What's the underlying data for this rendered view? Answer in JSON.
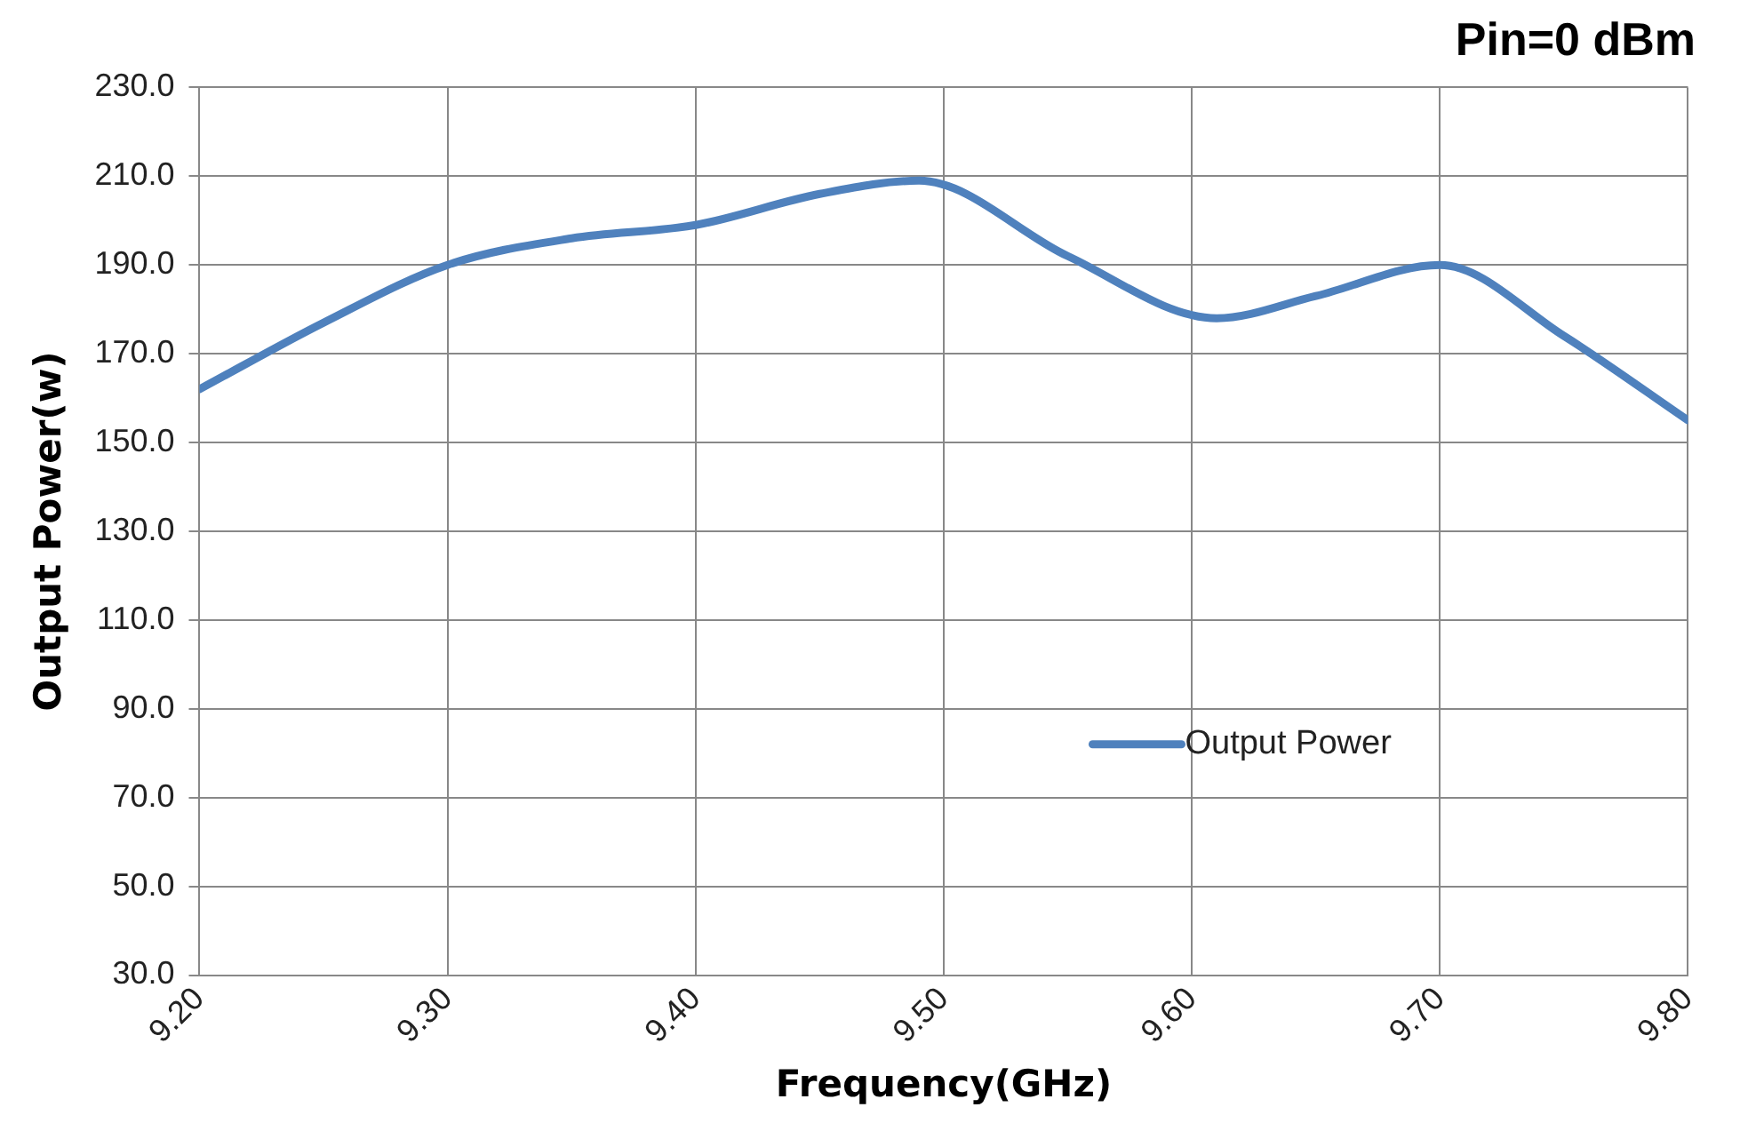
{
  "chart_data": {
    "type": "line",
    "title": "Pin=0 dBm",
    "xlabel": "Frequency(GHz)",
    "ylabel": "Output Power(w)",
    "x": [
      9.2,
      9.25,
      9.3,
      9.35,
      9.4,
      9.45,
      9.49,
      9.55,
      9.61,
      9.65,
      9.7,
      9.75,
      9.8
    ],
    "series": [
      {
        "name": "Output Power",
        "color": "#4f81bd",
        "values": [
          162,
          177,
          190,
          196,
          199,
          206,
          209,
          192,
          178,
          183,
          190,
          174,
          155
        ]
      }
    ],
    "xlim": [
      9.2,
      9.8
    ],
    "xticks": [
      {
        "value": 9.2,
        "label": "9.20"
      },
      {
        "value": 9.3,
        "label": "9.30"
      },
      {
        "value": 9.4,
        "label": "9.40"
      },
      {
        "value": 9.5,
        "label": "9.50"
      },
      {
        "value": 9.6,
        "label": "9.60"
      },
      {
        "value": 9.7,
        "label": "9.70"
      },
      {
        "value": 9.8,
        "label": "9.80"
      }
    ],
    "ylim": [
      30,
      230
    ],
    "yticks": [
      {
        "value": 30,
        "label": "30.0"
      },
      {
        "value": 50,
        "label": "50.0"
      },
      {
        "value": 70,
        "label": "70.0"
      },
      {
        "value": 90,
        "label": "90.0"
      },
      {
        "value": 110,
        "label": "110.0"
      },
      {
        "value": 130,
        "label": "130.0"
      },
      {
        "value": 150,
        "label": "150.0"
      },
      {
        "value": 170,
        "label": "170.0"
      },
      {
        "value": 190,
        "label": "190.0"
      },
      {
        "value": 210,
        "label": "210.0"
      },
      {
        "value": 230,
        "label": "230.0"
      }
    ],
    "grid": true,
    "legend": "right",
    "marker": "none",
    "line_style": "solid"
  }
}
